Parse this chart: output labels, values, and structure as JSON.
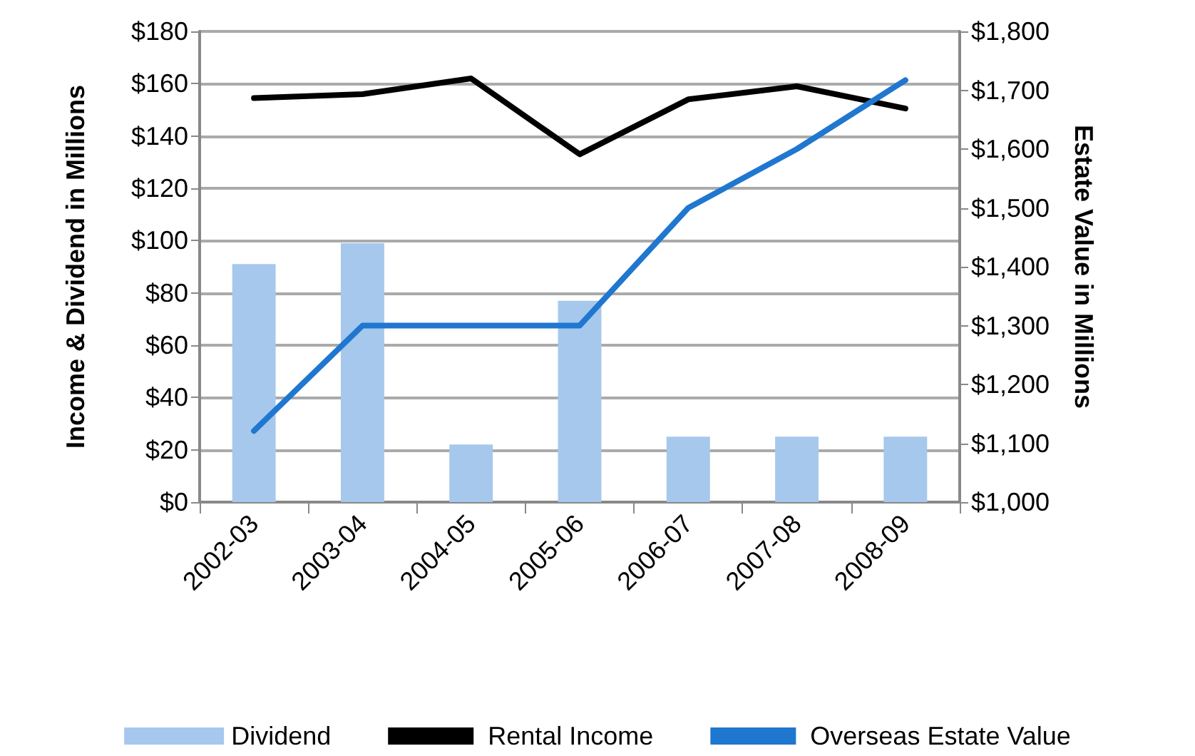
{
  "chart_data": {
    "type": "bar",
    "categories": [
      "2002-03",
      "2003-04",
      "2004-05",
      "2005-06",
      "2006-07",
      "2007-08",
      "2008-09"
    ],
    "ylabel": "Income & Dividend in Millions",
    "y2label": "Estate Value in Millions",
    "series": [
      {
        "name": "Dividend",
        "color": "#a6c8ec",
        "values": [
          91,
          99,
          22,
          77,
          25,
          25,
          25
        ]
      },
      {
        "name": "Rental Income",
        "type": "line",
        "color": "#000000",
        "values": [
          154.5,
          156,
          162,
          133,
          154,
          159,
          150.5
        ]
      },
      {
        "name": "Overseas Estate Value",
        "type": "line",
        "axis": "y2",
        "color": "#1f77d0",
        "values": [
          1121,
          1300,
          1300,
          1300,
          1500,
          1600,
          1717
        ]
      }
    ],
    "ylim": [
      0,
      180
    ],
    "yticks": [
      {
        "value": 0,
        "label": "$0"
      },
      {
        "value": 20,
        "label": "$20"
      },
      {
        "value": 40,
        "label": "$40"
      },
      {
        "value": 60,
        "label": "$60"
      },
      {
        "value": 80,
        "label": "$80"
      },
      {
        "value": 100,
        "label": "$100"
      },
      {
        "value": 120,
        "label": "$120"
      },
      {
        "value": 140,
        "label": "$140"
      },
      {
        "value": 160,
        "label": "$160"
      },
      {
        "value": 180,
        "label": "$180"
      }
    ],
    "y2lim": [
      1000,
      1800
    ],
    "y2ticks": [
      {
        "value": 1000,
        "label": "$1,000"
      },
      {
        "value": 1100,
        "label": "$1,100"
      },
      {
        "value": 1200,
        "label": "$1,200"
      },
      {
        "value": 1300,
        "label": "$1,300"
      },
      {
        "value": 1400,
        "label": "$1,400"
      },
      {
        "value": 1500,
        "label": "$1,500"
      },
      {
        "value": 1600,
        "label": "$1,600"
      },
      {
        "value": 1700,
        "label": "$1,700"
      },
      {
        "value": 1800,
        "label": "$1,800"
      }
    ],
    "grid": "y",
    "legend": "bottom",
    "marker": "none",
    "line_style": "solid"
  }
}
